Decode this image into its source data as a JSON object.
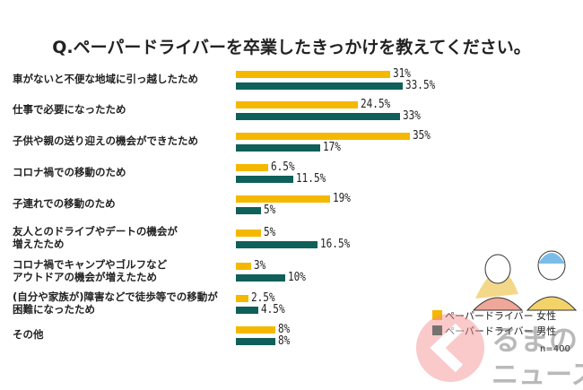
{
  "chart_data": {
    "type": "bar",
    "title": "Q.ペーパードライバーを卒業したきっかけを教えてください。",
    "categories": [
      "車がないと不便な地域に引っ越したため",
      "仕事で必要になったため",
      "子供や親の送り迎えの機会ができたため",
      "コロナ禍での移動のため",
      "子連れでの移動のため",
      "友人とのドライブやデートの機会が\n増えたため",
      "コロナ禍でキャンプやゴルフなど\nアウトドアの機会が増えたため",
      "(自分や家族が)障害などで徒歩等での移動が\n困難になったため",
      "その他"
    ],
    "series": [
      {
        "name": "ペーパードライバー 女性",
        "color": "#f5b800",
        "values": [
          31,
          24.5,
          35,
          6.5,
          19,
          5,
          3,
          2.5,
          8
        ],
        "labels": [
          "31%",
          "24.5%",
          "35%",
          "6.5%",
          "19%",
          "5%",
          "3%",
          "2.5%",
          "8%"
        ]
      },
      {
        "name": "ペーパードライバー 男性",
        "color": "#0f5f5a",
        "values": [
          33.5,
          33,
          17,
          11.5,
          5,
          16.5,
          10,
          4.5,
          8
        ],
        "labels": [
          "33.5%",
          "33%",
          "17%",
          "11.5%",
          "5%",
          "16.5%",
          "10%",
          "4.5%",
          "8%"
        ]
      }
    ],
    "note": "n=400",
    "xlim": [
      0,
      35
    ]
  },
  "watermark": "くるまのニュース"
}
